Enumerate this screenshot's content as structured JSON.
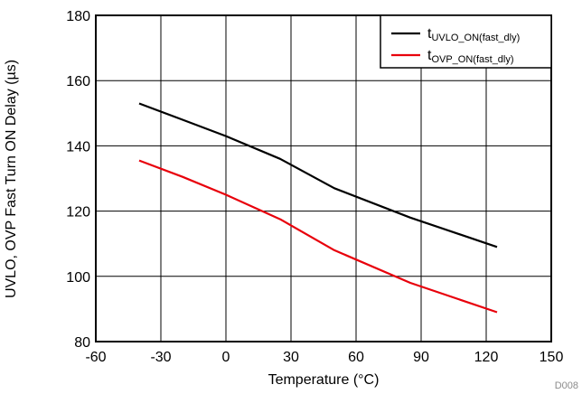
{
  "chart_data": {
    "type": "line",
    "xlabel": "Temperature (°C)",
    "ylabel": "UVLO, OVP Fast Turn ON Delay (µs)",
    "xlim": [
      -60,
      150
    ],
    "ylim": [
      80,
      180
    ],
    "xticks": [
      -60,
      -30,
      0,
      30,
      60,
      90,
      120,
      150
    ],
    "yticks": [
      80,
      100,
      120,
      140,
      160,
      180
    ],
    "grid": true,
    "legend_position": "top-right",
    "series": [
      {
        "name_main": "t",
        "name_sub": "UVLO_ON(fast_dly)",
        "color": "#000000",
        "x": [
          -40,
          -20,
          0,
          25,
          50,
          85,
          125
        ],
        "y": [
          153,
          148,
          143,
          136,
          127,
          118,
          109
        ]
      },
      {
        "name_main": "t",
        "name_sub": "OVP_ON(fast_dly)",
        "color": "#e8000b",
        "x": [
          -40,
          -20,
          0,
          25,
          50,
          85,
          125
        ],
        "y": [
          135.5,
          130.5,
          125,
          117.5,
          108,
          98,
          89
        ]
      }
    ],
    "figure_id": "D008"
  }
}
